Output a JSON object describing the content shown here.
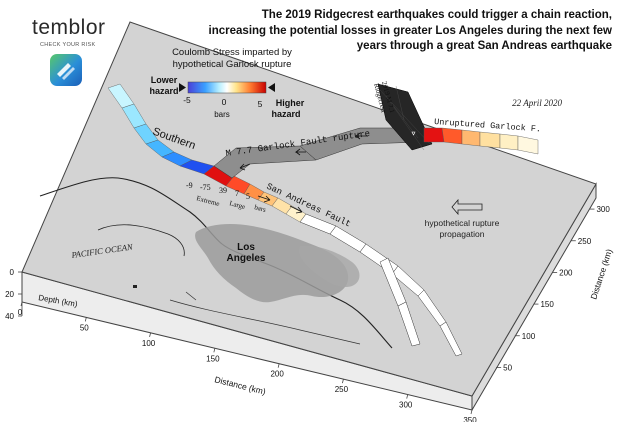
{
  "header": {
    "brand": "temblor",
    "tagline": "CHECK YOUR RISK",
    "headline": "The 2019 Ridgecrest earthquakes could trigger a chain reaction, increasing the potential losses in greater Los Angeles during the next few years through a great San Andreas earthquake"
  },
  "map": {
    "date": "22 April 2020",
    "legend": {
      "title_line1": "Coulomb Stress imparted by",
      "title_line2": "hypothetical Garlock rupture",
      "lower_line1": "Lower",
      "lower_line2": "hazard",
      "higher_line1": "Higher",
      "higher_line2": "hazard",
      "tick_min": "-5",
      "tick_mid": "0",
      "tick_max": "5",
      "unit": "bars"
    },
    "labels": {
      "southern": "Southern",
      "garlock_rupture": "M 7.7  Garlock  Fault  rupture",
      "unruptured": "Unruptured  Garlock  F.",
      "san_andreas": "San  Andreas  Fault",
      "ridgecrest_line1": "2019 M 7.1",
      "ridgecrest_line2": "Ridgecrest",
      "pacific": "PACIFIC  OCEAN",
      "la_line1": "Los",
      "la_line2": "Angeles",
      "propagation_line1": "hypothetical rupture",
      "propagation_line2": "propagation",
      "stress_values": [
        "-9",
        "-75",
        "39",
        "7",
        "5"
      ],
      "extreme": "Extreme",
      "large": "Large",
      "stress_unit": "bars"
    },
    "axes": {
      "depth_label": "Depth (km)",
      "depth_ticks": [
        "0",
        "20",
        "40"
      ],
      "distance_label": "Distance (km)",
      "distance_ticks": [
        "0",
        "50",
        "100",
        "150",
        "200",
        "250",
        "300",
        "350"
      ],
      "right_label": "Distance (km)",
      "right_ticks": [
        "300",
        "250",
        "200",
        "150",
        "100",
        "50"
      ]
    }
  }
}
